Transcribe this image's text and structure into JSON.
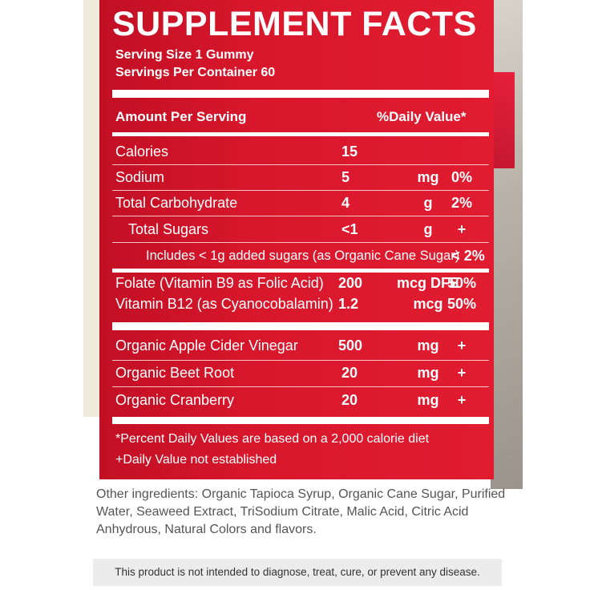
{
  "title": "SUPPLEMENT FACTS",
  "serving_size": "Serving Size 1 Gummy",
  "servings_per_container": "Servings Per Container 60",
  "header": {
    "amount": "Amount Per Serving",
    "dv": "%Daily Value*"
  },
  "rows": [
    {
      "name": "Calories",
      "amount": "15",
      "unit": "",
      "dv": ""
    },
    {
      "name": "Sodium",
      "amount": "5",
      "unit": "mg",
      "dv": "0%"
    },
    {
      "name": "Total Carbohydrate",
      "amount": "4",
      "unit": "g",
      "dv": "2%"
    },
    {
      "name": "Total Sugars",
      "amount": "<1",
      "unit": "g",
      "dv": "+"
    },
    {
      "name": "Includes < 1g added sugars (as Organic Cane Sugar)",
      "amount": "",
      "unit": "",
      "dv": "< 2%"
    },
    {
      "name": "Folate (Vitamin B9 as Folic Acid)",
      "amount": "200",
      "unit": "mcg DFE",
      "dv": "50%"
    },
    {
      "name": "Vitamin B12 (as Cyanocobalamin)",
      "amount": "1.2",
      "unit": "mcg",
      "dv": "50%"
    },
    {
      "name": "Organic Apple Cider Vinegar",
      "amount": "500",
      "unit": "mg",
      "dv": "+"
    },
    {
      "name": "Organic Beet Root",
      "amount": "20",
      "unit": "mg",
      "dv": "+"
    },
    {
      "name": "Organic Cranberry",
      "amount": "20",
      "unit": "mg",
      "dv": "+"
    }
  ],
  "footnote_1": "*Percent Daily Values are based on a 2,000 calorie diet",
  "footnote_2": "+Daily Value not established",
  "other_ingredients": "Other ingredients: Organic Tapioca Syrup, Organic Cane Sugar, Purified Water, Seaweed Extract, TriSodium Citrate, Malic Acid, Citric Acid Anhydrous, Natural Colors and flavors.",
  "disclaimer": "This product is not intended to diagnose, treat, cure, or prevent any disease.",
  "colors": {
    "label_red": "#d8172c",
    "text": "#ffffff",
    "ingredients_text": "#555555"
  }
}
